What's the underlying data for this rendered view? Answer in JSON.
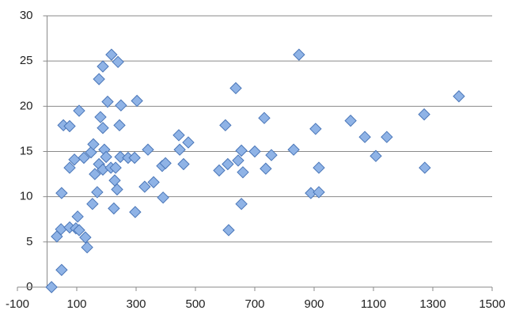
{
  "chart_data": {
    "type": "scatter",
    "x": [
      15,
      33,
      47,
      49,
      49,
      55,
      76,
      76,
      76,
      92,
      97,
      103,
      108,
      108,
      124,
      129,
      135,
      148,
      153,
      156,
      161,
      169,
      175,
      175,
      180,
      188,
      188,
      188,
      193,
      199,
      204,
      215,
      217,
      225,
      228,
      231,
      236,
      239,
      244,
      247,
      249,
      273,
      295,
      297,
      303,
      329,
      340,
      359,
      388,
      391,
      399,
      444,
      447,
      460,
      476,
      580,
      601,
      609,
      612,
      636,
      644,
      655,
      655,
      660,
      700,
      732,
      737,
      756,
      831,
      849,
      889,
      905,
      916,
      916,
      1023,
      1071,
      1108,
      1145,
      1271,
      1273,
      1388
    ],
    "values": [
      0,
      5.6,
      6.4,
      1.9,
      10.4,
      17.9,
      17.8,
      13.2,
      6.6,
      14.1,
      6.5,
      7.8,
      19.5,
      6.3,
      14.3,
      5.5,
      4.4,
      14.9,
      9.2,
      15.8,
      12.5,
      10.5,
      13.6,
      23.0,
      18.8,
      17.6,
      24.4,
      13.0,
      15.2,
      14.4,
      20.5,
      13.2,
      25.7,
      8.7,
      11.8,
      13.2,
      10.8,
      24.9,
      17.9,
      14.4,
      20.1,
      14.3,
      14.3,
      8.3,
      20.6,
      11.1,
      15.2,
      11.6,
      13.4,
      9.9,
      13.7,
      16.8,
      15.2,
      13.6,
      16.0,
      12.9,
      17.9,
      13.6,
      6.3,
      22.0,
      14.0,
      15.1,
      9.2,
      12.7,
      15.0,
      18.7,
      13.1,
      14.6,
      15.2,
      25.7,
      10.4,
      17.5,
      10.5,
      13.2,
      18.4,
      16.6,
      14.5,
      16.6,
      19.1,
      13.2,
      21.1
    ],
    "color": "#8fb3e6",
    "xlim": [
      -100,
      1500
    ],
    "xticks": [
      -100,
      100,
      300,
      500,
      700,
      900,
      1100,
      1300,
      1500
    ],
    "ylim": [
      0,
      30
    ],
    "yticks": [
      0,
      5,
      10,
      15,
      20,
      25,
      30
    ],
    "grid": true
  }
}
